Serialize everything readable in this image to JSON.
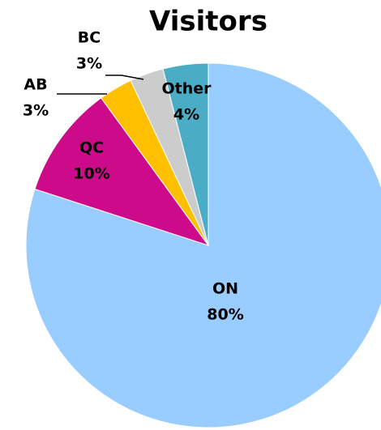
{
  "chart_data": {
    "type": "pie",
    "title": "Visitors",
    "categories": [
      "ON",
      "QC",
      "AB",
      "BC",
      "Other"
    ],
    "values": [
      80,
      10,
      3,
      3,
      4
    ],
    "value_labels": [
      "80%",
      "10%",
      "3%",
      "3%",
      "4%"
    ],
    "colors": [
      "#99ccff",
      "#cc0a8a",
      "#ffc000",
      "#cccccc",
      "#4bacc6"
    ]
  }
}
